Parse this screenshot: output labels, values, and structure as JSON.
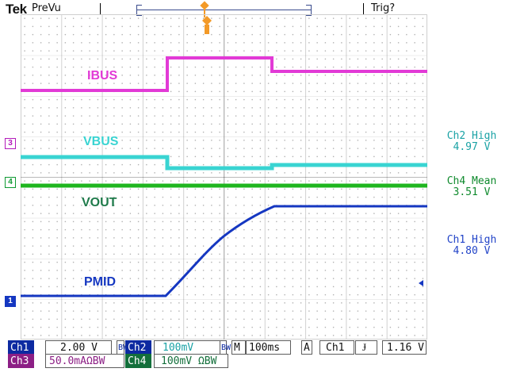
{
  "header": {
    "brand": "Tek",
    "status": "PreVu",
    "trigger_status": "Trig?"
  },
  "labels": {
    "ibus": "IBUS",
    "vbus": "VBUS",
    "vout": "VOUT",
    "pmid": "PMID"
  },
  "markers": {
    "ch3": "3",
    "ch4": "4",
    "ch1": "1"
  },
  "readouts": [
    {
      "line1": "Ch2 High",
      "line2": "4.97 V"
    },
    {
      "line1": "Ch4 Mean",
      "line2": "3.51 V"
    },
    {
      "line1": "Ch1 High",
      "line2": "4.80 V"
    }
  ],
  "footer": {
    "ch1": "Ch1",
    "ch1_scale": "2.00 V",
    "ch1_bw": "BW",
    "ch2": "Ch2",
    "ch2_scale": "100mV",
    "ch2_bw": "BW",
    "m": "M",
    "timebase": "100ms",
    "a": "A",
    "trig_source": "Ch1",
    "trig_edge": "Ɉ",
    "trig_level": "1.16 V",
    "ch3": "Ch3",
    "ch3_scale": "50.0mAΩBW",
    "ch4": "Ch4",
    "ch4_scale": "100mV ΩBW"
  },
  "colors": {
    "ibus": "#e23ad6",
    "vbus": "#39d4d2",
    "vout": "#1fb51f",
    "pmid": "#1537c1",
    "marker_ch3": "#b31abb",
    "marker_ch4": "#0f9a33",
    "marker_ch1": "#1537c1",
    "trigger": "#f39a28"
  }
}
